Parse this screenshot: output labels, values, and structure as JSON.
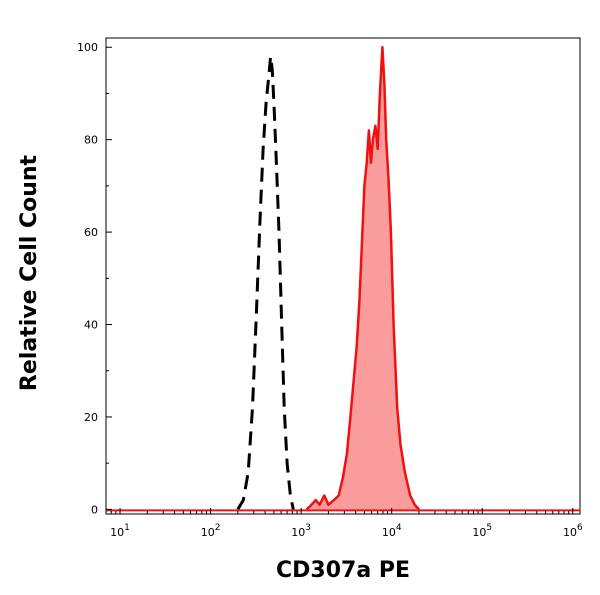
{
  "chart_data": {
    "type": "area",
    "xlabel": "CD307a PE",
    "ylabel": "Relative Cell Count",
    "x_scale": "log",
    "xlim": [
      7,
      1200000
    ],
    "ylim": [
      -1,
      102
    ],
    "x_ticks": [
      {
        "value": 10,
        "base": "10",
        "exp": "1"
      },
      {
        "value": 100,
        "base": "10",
        "exp": "2"
      },
      {
        "value": 1000,
        "base": "10",
        "exp": "3"
      },
      {
        "value": 10000,
        "base": "10",
        "exp": "4"
      },
      {
        "value": 100000,
        "base": "10",
        "exp": "5"
      },
      {
        "value": 1000000,
        "base": "10",
        "exp": "6"
      }
    ],
    "y_ticks": [
      0,
      20,
      40,
      60,
      80,
      100
    ],
    "grid": false,
    "legend": "none",
    "series": [
      {
        "style": "dashed",
        "color": "#000000",
        "filled": false,
        "points": [
          [
            200,
            0
          ],
          [
            230,
            2
          ],
          [
            260,
            8
          ],
          [
            290,
            22
          ],
          [
            320,
            42
          ],
          [
            350,
            62
          ],
          [
            380,
            78
          ],
          [
            410,
            88
          ],
          [
            440,
            94
          ],
          [
            460,
            98
          ],
          [
            480,
            95
          ],
          [
            500,
            88
          ],
          [
            530,
            76
          ],
          [
            570,
            60
          ],
          [
            610,
            40
          ],
          [
            650,
            22
          ],
          [
            700,
            10
          ],
          [
            760,
            3
          ],
          [
            820,
            0
          ]
        ]
      },
      {
        "style": "solid",
        "color": "#ee1111",
        "fill_color": "#fa9c9c",
        "filled": true,
        "points": [
          [
            1150,
            0
          ],
          [
            1300,
            1
          ],
          [
            1450,
            2
          ],
          [
            1600,
            1
          ],
          [
            1800,
            3
          ],
          [
            2000,
            1
          ],
          [
            2300,
            2
          ],
          [
            2600,
            3
          ],
          [
            2900,
            7
          ],
          [
            3200,
            12
          ],
          [
            3500,
            20
          ],
          [
            3800,
            28
          ],
          [
            4100,
            35
          ],
          [
            4400,
            45
          ],
          [
            4700,
            58
          ],
          [
            5000,
            70
          ],
          [
            5300,
            75
          ],
          [
            5600,
            82
          ],
          [
            5900,
            75
          ],
          [
            6200,
            80
          ],
          [
            6600,
            83
          ],
          [
            7000,
            78
          ],
          [
            7400,
            90
          ],
          [
            7900,
            100
          ],
          [
            8300,
            92
          ],
          [
            8700,
            80
          ],
          [
            9200,
            72
          ],
          [
            9800,
            60
          ],
          [
            10500,
            40
          ],
          [
            11500,
            22
          ],
          [
            12500,
            14
          ],
          [
            14000,
            8
          ],
          [
            16000,
            3
          ],
          [
            18000,
            1
          ],
          [
            20000,
            0
          ]
        ]
      }
    ]
  }
}
